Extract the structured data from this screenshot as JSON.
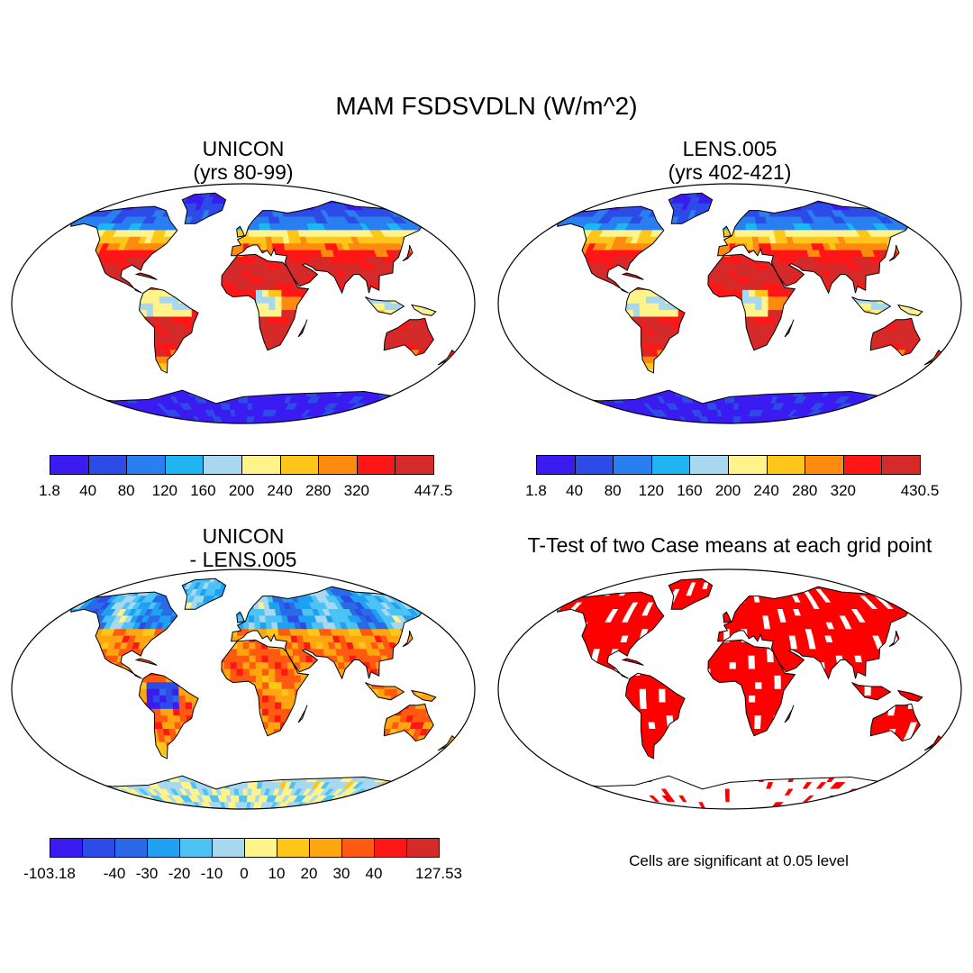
{
  "figure": {
    "title": "MAM FSDSVDLN (W/m^2)",
    "note": "Cells are significant at 0.05 level"
  },
  "panels": [
    {
      "id": "unicon",
      "title_line1": "UNICON",
      "title_line2": "(yrs 80-99)",
      "style": "absolute",
      "colorbar": {
        "colors": [
          "#3a1bf0",
          "#2d4be6",
          "#2a7ff0",
          "#1fb4f2",
          "#a8d8f0",
          "#fff48c",
          "#ffc61a",
          "#ff8a10",
          "#ff1616",
          "#d42a2a"
        ],
        "ticks": [
          {
            "label": "1.8",
            "boundary": 0
          },
          {
            "label": "40",
            "boundary": 1
          },
          {
            "label": "80",
            "boundary": 2
          },
          {
            "label": "120",
            "boundary": 3
          },
          {
            "label": "160",
            "boundary": 4
          },
          {
            "label": "200",
            "boundary": 5
          },
          {
            "label": "240",
            "boundary": 6
          },
          {
            "label": "280",
            "boundary": 7
          },
          {
            "label": "320",
            "boundary": 8
          },
          {
            "label": "447.5",
            "boundary": 10
          }
        ]
      }
    },
    {
      "id": "lens",
      "title_line1": "LENS.005",
      "title_line2": "(yrs 402-421)",
      "style": "absolute",
      "colorbar": {
        "colors": [
          "#3a1bf0",
          "#2d4be6",
          "#2a7ff0",
          "#1fb4f2",
          "#a8d8f0",
          "#fff48c",
          "#ffc61a",
          "#ff8a10",
          "#ff1616",
          "#d42a2a"
        ],
        "ticks": [
          {
            "label": "1.8",
            "boundary": 0
          },
          {
            "label": "40",
            "boundary": 1
          },
          {
            "label": "80",
            "boundary": 2
          },
          {
            "label": "120",
            "boundary": 3
          },
          {
            "label": "160",
            "boundary": 4
          },
          {
            "label": "200",
            "boundary": 5
          },
          {
            "label": "240",
            "boundary": 6
          },
          {
            "label": "280",
            "boundary": 7
          },
          {
            "label": "320",
            "boundary": 8
          },
          {
            "label": "430.5",
            "boundary": 10
          }
        ]
      }
    },
    {
      "id": "diff",
      "title_line1": "UNICON",
      "title_line2": "- LENS.005",
      "style": "difference",
      "colorbar": {
        "colors": [
          "#3a1bf0",
          "#2d4be6",
          "#2a6ae6",
          "#1fa0f0",
          "#4dc3f5",
          "#a8d8f0",
          "#fff48c",
          "#ffc61a",
          "#ffa510",
          "#ff5a10",
          "#ff1616",
          "#d42a2a"
        ],
        "ticks": [
          {
            "label": "-103.18",
            "boundary": 0
          },
          {
            "label": "-40",
            "boundary": 2
          },
          {
            "label": "-30",
            "boundary": 3
          },
          {
            "label": "-20",
            "boundary": 4
          },
          {
            "label": "-10",
            "boundary": 5
          },
          {
            "label": "0",
            "boundary": 6
          },
          {
            "label": "10",
            "boundary": 7
          },
          {
            "label": "20",
            "boundary": 8
          },
          {
            "label": "30",
            "boundary": 9
          },
          {
            "label": "40",
            "boundary": 10
          },
          {
            "label": "127.53",
            "boundary": 12
          }
        ]
      }
    },
    {
      "id": "ttest",
      "title_line1": "T-Test of two Case means at each grid point",
      "style": "significance",
      "significance_color": "#ff0000"
    }
  ]
}
